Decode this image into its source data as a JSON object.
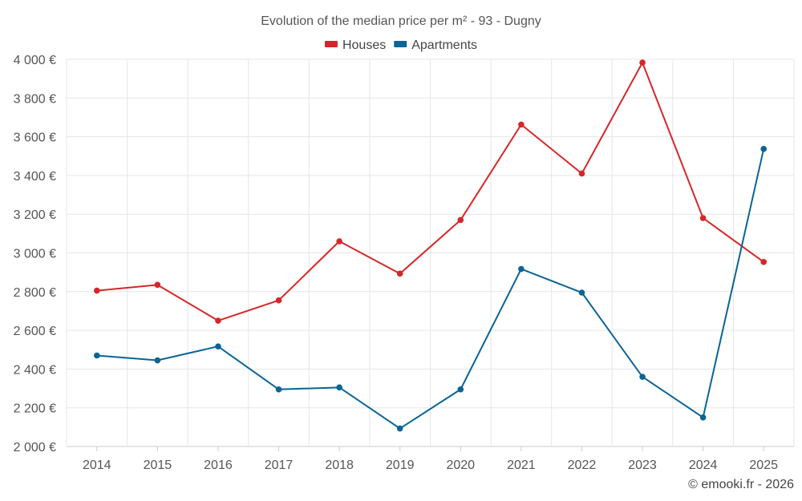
{
  "chart_data": {
    "type": "line",
    "title": "Evolution of the median price per m² - 93 - Dugny",
    "categories": [
      "2014",
      "2015",
      "2016",
      "2017",
      "2018",
      "2019",
      "2020",
      "2021",
      "2022",
      "2023",
      "2024",
      "2025"
    ],
    "series": [
      {
        "name": "Houses",
        "color": "#d62728",
        "values": [
          2805,
          2835,
          2650,
          2755,
          3060,
          2893,
          3170,
          3663,
          3410,
          3983,
          3180,
          2953
        ]
      },
      {
        "name": "Apartments",
        "color": "#0a6496",
        "values": [
          2470,
          2445,
          2517,
          2295,
          2305,
          2093,
          2295,
          2917,
          2795,
          2360,
          2150,
          3537
        ]
      }
    ],
    "ylim": [
      2000,
      4000
    ],
    "y_ticks": [
      2000,
      2200,
      2400,
      2600,
      2800,
      3000,
      3200,
      3400,
      3600,
      3800,
      4000
    ],
    "y_tick_labels": [
      "2 000 €",
      "2 200 €",
      "2 400 €",
      "2 600 €",
      "2 800 €",
      "3 000 €",
      "3 200 €",
      "3 400 €",
      "3 600 €",
      "3 800 €",
      "4 000 €"
    ],
    "xlabel": "",
    "ylabel": "",
    "grid": true,
    "legend_position": "top-center"
  },
  "credit": "© emooki.fr - 2026"
}
